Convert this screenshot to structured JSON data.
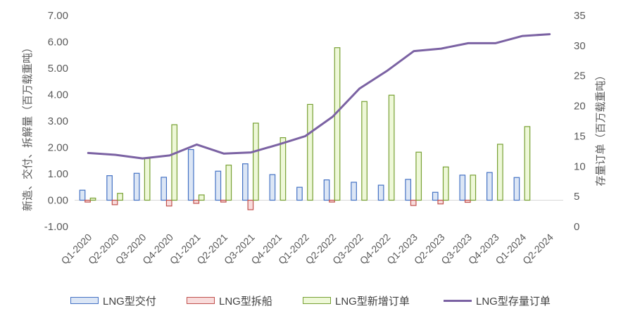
{
  "chart_data": {
    "type": "bar",
    "categories": [
      "Q1-2020",
      "Q2-2020",
      "Q3-2020",
      "Q4-2020",
      "Q1-2021",
      "Q2-2021",
      "Q3-2021",
      "Q4-2021",
      "Q1-2022",
      "Q2-2022",
      "Q3-2022",
      "Q4-2022",
      "Q1-2023",
      "Q2-2023",
      "Q3-2023",
      "Q4-2023",
      "Q1-2024",
      "Q2-2024"
    ],
    "series": [
      {
        "name": "LNG型交付",
        "kind": "bar",
        "axis": "left",
        "color": "#4472C4",
        "fill": "#DCE6F5",
        "values": [
          0.38,
          0.93,
          1.02,
          0.87,
          1.92,
          1.1,
          1.38,
          0.97,
          0.49,
          0.77,
          0.68,
          0.57,
          0.79,
          0.3,
          0.95,
          1.05,
          0.86,
          null
        ]
      },
      {
        "name": "LNG型拆船",
        "kind": "bar",
        "axis": "left",
        "color": "#C0504D",
        "fill": "#F8DCDC",
        "values": [
          -0.07,
          -0.17,
          0,
          -0.22,
          -0.12,
          -0.07,
          -0.36,
          0,
          0,
          -0.07,
          0,
          0,
          -0.2,
          -0.14,
          -0.08,
          0,
          0,
          0
        ]
      },
      {
        "name": "LNG型新增订单",
        "kind": "bar",
        "axis": "left",
        "color": "#77A033",
        "fill": "#EEF8D8",
        "values": [
          0.08,
          0.26,
          1.58,
          2.86,
          0.2,
          1.33,
          2.92,
          2.37,
          3.63,
          5.78,
          3.74,
          3.98,
          1.82,
          1.26,
          0.95,
          2.12,
          2.79,
          null
        ]
      },
      {
        "name": "LNG型存量订单",
        "kind": "line",
        "axis": "right",
        "color": "#7B62A3",
        "values": [
          12.2,
          11.9,
          11.3,
          11.8,
          13.6,
          12.1,
          12.3,
          13.6,
          15.0,
          18.2,
          22.9,
          25.8,
          29.1,
          29.5,
          30.4,
          30.4,
          31.6,
          31.9
        ]
      }
    ],
    "y_left": {
      "label": "新造、交付、拆解量（百万载重吨）",
      "min": -1.0,
      "max": 7.0,
      "step": 1.0,
      "ticks": [
        "-1.00",
        "0.00",
        "1.00",
        "2.00",
        "3.00",
        "4.00",
        "5.00",
        "6.00",
        "7.00"
      ]
    },
    "y_right": {
      "label": "存量订单（百万载重吨）",
      "min": 0,
      "max": 35,
      "ticks": [
        "0",
        "5",
        "10",
        "15",
        "20",
        "25",
        "30",
        "35"
      ]
    },
    "grid": false,
    "legend_position": "bottom"
  }
}
